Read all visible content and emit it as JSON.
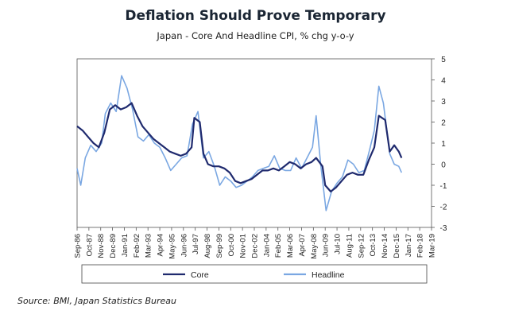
{
  "chart_data": {
    "type": "line",
    "title": "Deflation Should Prove Temporary",
    "subtitle": "Japan - Core And Headline CPI, % chg y-o-y",
    "source": "Source: BMI, Japan Statistics Bureau",
    "ylim": [
      -3,
      5
    ],
    "yticks": [
      "5",
      "4",
      "3",
      "2",
      "1",
      "0",
      "-1",
      "-2",
      "-3"
    ],
    "xlim": [
      "1986-09",
      "2019-03"
    ],
    "xticks": [
      "Sep-86",
      "Oct-87",
      "Nov-88",
      "Dec-89",
      "Jan-91",
      "Feb-92",
      "Mar-93",
      "Apr-94",
      "May-95",
      "Jun-96",
      "Jul-97",
      "Aug-98",
      "Sep-99",
      "Oct-00",
      "Nov-01",
      "Dec-02",
      "Jan-04",
      "Feb-05",
      "Mar-06",
      "Apr-07",
      "May-08",
      "Jun-09",
      "Jul-10",
      "Aug-11",
      "Sep-12",
      "Oct-13",
      "Nov-14",
      "Dec-15",
      "Jan-17",
      "Feb-18",
      "Mar-19"
    ],
    "legend_placement": "bottom",
    "series": [
      {
        "name": "Core",
        "color": "#1f2a6e",
        "points": [
          [
            "1986-09",
            1.8
          ],
          [
            "1987-03",
            1.6
          ],
          [
            "1987-09",
            1.3
          ],
          [
            "1988-03",
            1.0
          ],
          [
            "1988-09",
            0.8
          ],
          [
            "1989-03",
            1.5
          ],
          [
            "1989-09",
            2.6
          ],
          [
            "1990-03",
            2.8
          ],
          [
            "1990-09",
            2.6
          ],
          [
            "1991-03",
            2.7
          ],
          [
            "1991-09",
            2.9
          ],
          [
            "1992-03",
            2.3
          ],
          [
            "1992-09",
            1.8
          ],
          [
            "1993-03",
            1.5
          ],
          [
            "1993-09",
            1.2
          ],
          [
            "1994-03",
            1.0
          ],
          [
            "1994-09",
            0.8
          ],
          [
            "1995-03",
            0.6
          ],
          [
            "1995-09",
            0.5
          ],
          [
            "1996-03",
            0.4
          ],
          [
            "1996-09",
            0.5
          ],
          [
            "1997-03",
            0.8
          ],
          [
            "1997-06",
            2.2
          ],
          [
            "1997-12",
            2.0
          ],
          [
            "1998-04",
            0.5
          ],
          [
            "1998-09",
            0.0
          ],
          [
            "1999-03",
            -0.1
          ],
          [
            "1999-09",
            -0.1
          ],
          [
            "2000-03",
            -0.2
          ],
          [
            "2000-09",
            -0.4
          ],
          [
            "2001-03",
            -0.8
          ],
          [
            "2001-09",
            -0.9
          ],
          [
            "2002-03",
            -0.8
          ],
          [
            "2002-09",
            -0.7
          ],
          [
            "2003-03",
            -0.5
          ],
          [
            "2003-09",
            -0.3
          ],
          [
            "2004-03",
            -0.3
          ],
          [
            "2004-09",
            -0.2
          ],
          [
            "2005-03",
            -0.3
          ],
          [
            "2005-09",
            -0.1
          ],
          [
            "2006-03",
            0.1
          ],
          [
            "2006-09",
            0.0
          ],
          [
            "2007-03",
            -0.2
          ],
          [
            "2007-09",
            0.0
          ],
          [
            "2008-03",
            0.1
          ],
          [
            "2008-08",
            0.3
          ],
          [
            "2009-03",
            -0.1
          ],
          [
            "2009-06",
            -1.0
          ],
          [
            "2009-12",
            -1.3
          ],
          [
            "2010-06",
            -1.1
          ],
          [
            "2010-12",
            -0.8
          ],
          [
            "2011-06",
            -0.5
          ],
          [
            "2011-12",
            -0.4
          ],
          [
            "2012-06",
            -0.5
          ],
          [
            "2012-12",
            -0.5
          ],
          [
            "2013-06",
            0.2
          ],
          [
            "2013-12",
            0.8
          ],
          [
            "2014-05",
            2.3
          ],
          [
            "2014-12",
            2.1
          ],
          [
            "2015-05",
            0.6
          ],
          [
            "2015-10",
            0.9
          ],
          [
            "2016-03",
            0.6
          ],
          [
            "2016-06",
            0.3
          ]
        ]
      },
      {
        "name": "Headline",
        "color": "#7aa7e2",
        "points": [
          [
            "1986-09",
            -0.2
          ],
          [
            "1987-01",
            -1.0
          ],
          [
            "1987-06",
            0.3
          ],
          [
            "1987-12",
            0.9
          ],
          [
            "1988-06",
            0.6
          ],
          [
            "1988-12",
            1.0
          ],
          [
            "1989-04",
            2.4
          ],
          [
            "1989-10",
            2.9
          ],
          [
            "1990-04",
            2.5
          ],
          [
            "1990-10",
            4.2
          ],
          [
            "1991-04",
            3.6
          ],
          [
            "1991-10",
            2.6
          ],
          [
            "1992-04",
            1.3
          ],
          [
            "1992-10",
            1.1
          ],
          [
            "1993-04",
            1.4
          ],
          [
            "1993-10",
            1.0
          ],
          [
            "1994-04",
            0.8
          ],
          [
            "1994-10",
            0.3
          ],
          [
            "1995-04",
            -0.3
          ],
          [
            "1995-10",
            0.0
          ],
          [
            "1996-04",
            0.3
          ],
          [
            "1996-10",
            0.4
          ],
          [
            "1997-04",
            1.9
          ],
          [
            "1997-10",
            2.5
          ],
          [
            "1998-04",
            0.3
          ],
          [
            "1998-10",
            0.6
          ],
          [
            "1999-04",
            -0.1
          ],
          [
            "1999-10",
            -1.0
          ],
          [
            "2000-04",
            -0.6
          ],
          [
            "2000-10",
            -0.8
          ],
          [
            "2001-04",
            -1.1
          ],
          [
            "2001-10",
            -1.0
          ],
          [
            "2002-04",
            -0.8
          ],
          [
            "2002-10",
            -0.6
          ],
          [
            "2003-04",
            -0.3
          ],
          [
            "2003-10",
            -0.2
          ],
          [
            "2004-04",
            -0.1
          ],
          [
            "2004-10",
            0.4
          ],
          [
            "2005-04",
            -0.2
          ],
          [
            "2005-10",
            -0.3
          ],
          [
            "2006-04",
            -0.3
          ],
          [
            "2006-10",
            0.3
          ],
          [
            "2007-04",
            -0.2
          ],
          [
            "2007-10",
            0.3
          ],
          [
            "2008-04",
            0.8
          ],
          [
            "2008-08",
            2.3
          ],
          [
            "2009-01",
            0.0
          ],
          [
            "2009-07",
            -2.2
          ],
          [
            "2010-01",
            -1.3
          ],
          [
            "2010-07",
            -0.9
          ],
          [
            "2011-01",
            -0.6
          ],
          [
            "2011-07",
            0.2
          ],
          [
            "2012-01",
            0.0
          ],
          [
            "2012-07",
            -0.4
          ],
          [
            "2013-01",
            -0.3
          ],
          [
            "2013-07",
            0.7
          ],
          [
            "2013-12",
            1.6
          ],
          [
            "2014-05",
            3.7
          ],
          [
            "2014-10",
            2.9
          ],
          [
            "2015-05",
            0.5
          ],
          [
            "2015-10",
            0.0
          ],
          [
            "2016-03",
            -0.1
          ],
          [
            "2016-06",
            -0.4
          ]
        ]
      }
    ]
  }
}
